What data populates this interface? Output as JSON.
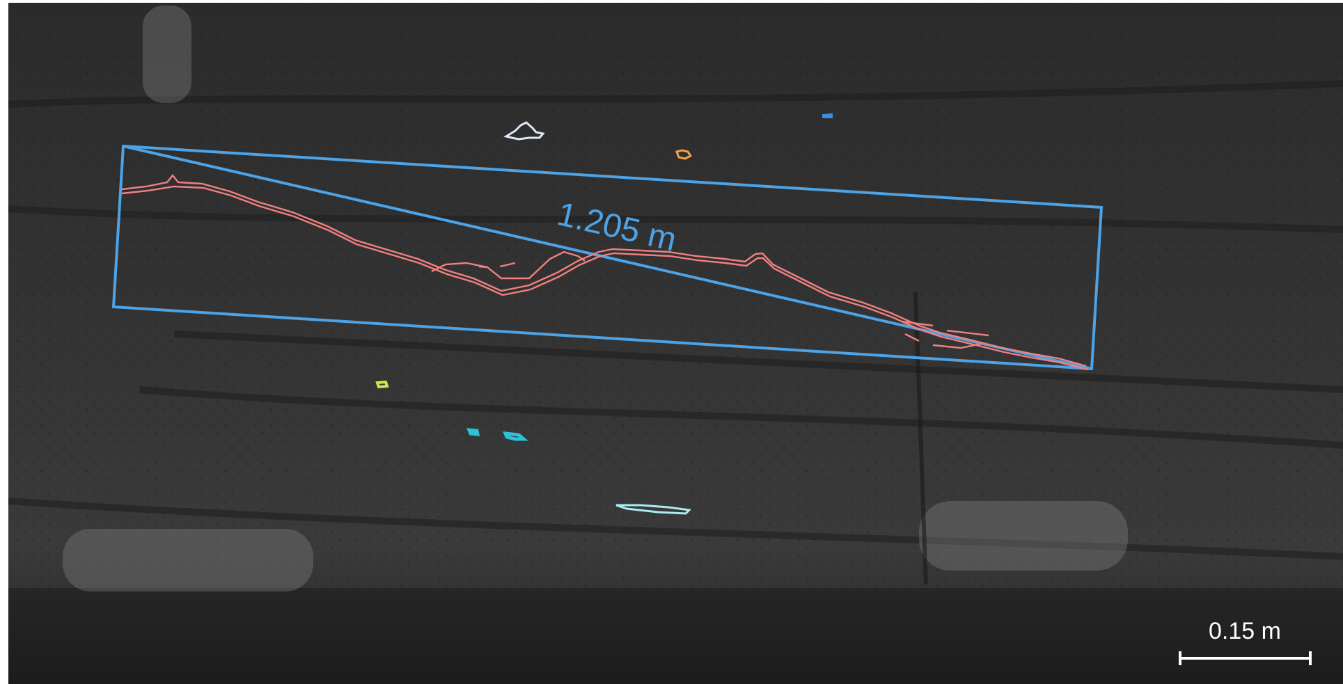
{
  "measurement": {
    "length_label": "1.205 m",
    "box_color": "#4da3e6",
    "crack_color": "#f08080"
  },
  "scale_bar": {
    "label": "0.15 m",
    "color": "#ffffff"
  },
  "segments": [
    {
      "name": "segment-white",
      "color": "#dfe6f7"
    },
    {
      "name": "segment-orange",
      "color": "#f2a24a"
    },
    {
      "name": "segment-blue-small",
      "color": "#3a8ee0"
    },
    {
      "name": "segment-yellow",
      "color": "#d8e24a"
    },
    {
      "name": "segment-cyan-a",
      "color": "#2dc2d8"
    },
    {
      "name": "segment-cyan-b",
      "color": "#2dc2d8"
    },
    {
      "name": "segment-light-cyan",
      "color": "#a9ecf3"
    }
  ]
}
